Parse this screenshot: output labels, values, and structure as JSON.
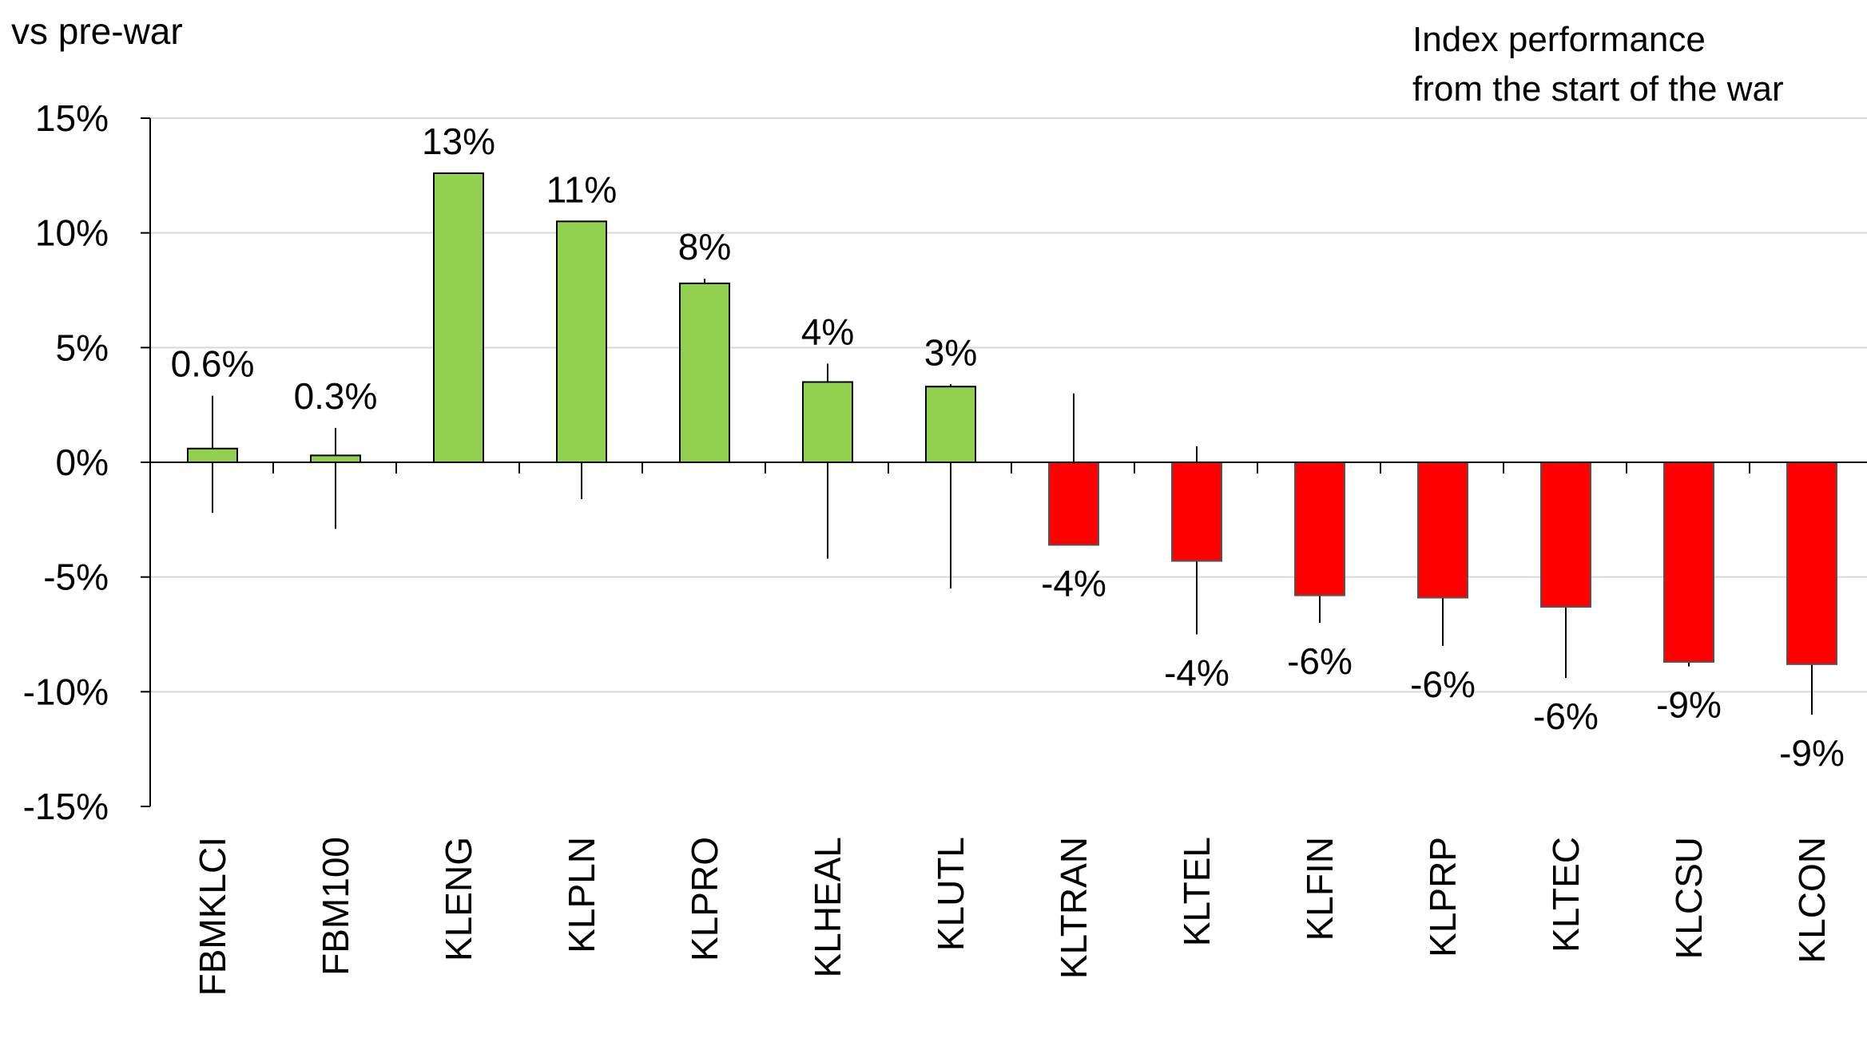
{
  "chart_data": {
    "type": "bar",
    "title": "Index performance from the start of the war",
    "title_lines": [
      "Index performance",
      "from the start of the war"
    ],
    "ylabel": "vs pre-war",
    "xlabel": "",
    "ylim": [
      -15,
      15
    ],
    "yticks": [
      15,
      10,
      5,
      0,
      -5,
      -10,
      -15
    ],
    "ytick_labels": [
      "15%",
      "10%",
      "5%",
      "0%",
      "-5%",
      "-10%",
      "-15%"
    ],
    "grid": true,
    "legend": "none",
    "colors": {
      "positive": "#92d050",
      "negative": "#ff0000",
      "outline": "#000000",
      "grid": "#d9d9d9"
    },
    "categories": [
      "FBMKLCI",
      "FBM100",
      "KLENG",
      "KLPLN",
      "KLPRO",
      "KLHEAL",
      "KLUTL",
      "KLTRAN",
      "KLTEL",
      "KLFIN",
      "KLPRP",
      "KLTEC",
      "KLCSU",
      "KLCON"
    ],
    "values": [
      0.6,
      0.3,
      12.6,
      10.5,
      7.8,
      3.5,
      3.3,
      -3.6,
      -4.3,
      -5.8,
      -5.9,
      -6.3,
      -8.7,
      -8.8
    ],
    "data_labels": [
      "0.6%",
      "0.3%",
      "13%",
      "11%",
      "8%",
      "4%",
      "3%",
      "-4%",
      "-4%",
      "-6%",
      "-6%",
      "-6%",
      "-9%",
      "-9%"
    ],
    "range_high": [
      2.9,
      1.5,
      12.6,
      10.5,
      8.0,
      4.3,
      3.4,
      3.0,
      0.7,
      -5.8,
      -5.9,
      -6.3,
      -8.7,
      -8.8
    ],
    "range_low": [
      -2.2,
      -2.9,
      0,
      -1.6,
      7.8,
      -4.2,
      -5.5,
      -3.6,
      -7.5,
      -7.0,
      -8.0,
      -9.4,
      -8.9,
      -11.0
    ]
  }
}
